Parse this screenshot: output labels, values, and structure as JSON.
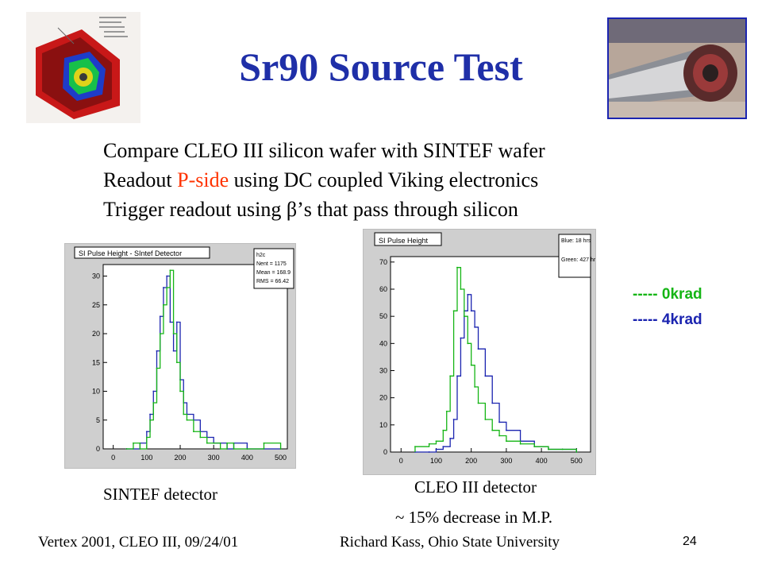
{
  "title": "Sr90 Source Test",
  "bullets": {
    "line1": "Compare CLEO III silicon wafer with SINTEF wafer",
    "line2_pre": "Readout ",
    "line2_red": "P-side",
    "line2_post": " using DC coupled Viking electronics",
    "line3": "Trigger readout using β’s that pass through silicon"
  },
  "legend": {
    "green": "----- 0krad",
    "blue": "----- 4krad",
    "green_color": "#15b515",
    "blue_color": "#1b24b0"
  },
  "captions": {
    "left": "SINTEF detector",
    "right_line1": "CLEO III detector",
    "right_line2": "~ 15% decrease in M.P."
  },
  "footer": {
    "left": "Vertex 2001, CLEO III,  09/24/01",
    "center": "Richard Kass, Ohio State University",
    "page": "24"
  },
  "chart_data": [
    {
      "type": "line",
      "title": "SI Pulse Height - SIntef Detector",
      "stats": [
        "h2c",
        "Nent = 1175",
        "Mean  = 168.9",
        "RMS  = 66.42"
      ],
      "xlim": [
        -30,
        520
      ],
      "ylim": [
        0,
        32
      ],
      "xticks": [
        0,
        100,
        200,
        300,
        400,
        500
      ],
      "yticks": [
        0,
        5,
        10,
        15,
        20,
        25,
        30
      ],
      "series": [
        {
          "color": "#1b24b0",
          "x": [
            40,
            60,
            80,
            100,
            110,
            120,
            130,
            140,
            150,
            160,
            170,
            180,
            190,
            200,
            210,
            220,
            240,
            260,
            280,
            300,
            320,
            340,
            360,
            400,
            450,
            500
          ],
          "y": [
            0,
            0,
            1,
            3,
            6,
            10,
            17,
            23,
            28,
            30,
            22,
            17,
            22,
            12,
            8,
            6,
            5,
            3,
            2,
            1,
            1,
            0,
            1,
            0,
            0,
            0
          ]
        },
        {
          "color": "#15b515",
          "x": [
            40,
            60,
            80,
            100,
            110,
            120,
            130,
            140,
            150,
            160,
            170,
            180,
            190,
            200,
            210,
            220,
            240,
            260,
            280,
            300,
            320,
            340,
            360,
            400,
            450,
            500
          ],
          "y": [
            0,
            1,
            0,
            2,
            5,
            8,
            14,
            20,
            25,
            28,
            31,
            20,
            15,
            10,
            6,
            5,
            3,
            2,
            1,
            1,
            0,
            1,
            0,
            0,
            1,
            0
          ]
        }
      ]
    },
    {
      "type": "line",
      "title": "SI Pulse Height",
      "stats": [
        "Blue:     18 hrs",
        "Green:  427 hrs"
      ],
      "xlim": [
        -30,
        540
      ],
      "ylim": [
        0,
        72
      ],
      "xticks": [
        0,
        100,
        200,
        300,
        400,
        500
      ],
      "yticks": [
        0,
        10,
        20,
        30,
        40,
        50,
        60,
        70
      ],
      "series": [
        {
          "color": "#1b24b0",
          "x": [
            40,
            80,
            100,
            120,
            140,
            150,
            160,
            170,
            180,
            190,
            200,
            210,
            220,
            240,
            260,
            280,
            300,
            340,
            380,
            420,
            460,
            500
          ],
          "y": [
            0,
            0,
            1,
            2,
            5,
            12,
            28,
            42,
            52,
            58,
            52,
            46,
            38,
            28,
            18,
            11,
            8,
            4,
            2,
            1,
            1,
            0
          ]
        },
        {
          "color": "#15b515",
          "x": [
            40,
            80,
            100,
            120,
            130,
            140,
            150,
            160,
            170,
            180,
            190,
            200,
            210,
            220,
            240,
            260,
            280,
            300,
            340,
            380,
            420,
            460,
            500
          ],
          "y": [
            2,
            3,
            4,
            8,
            15,
            28,
            52,
            68,
            60,
            50,
            40,
            32,
            24,
            18,
            12,
            8,
            6,
            4,
            3,
            2,
            1,
            1,
            0
          ]
        }
      ]
    }
  ]
}
